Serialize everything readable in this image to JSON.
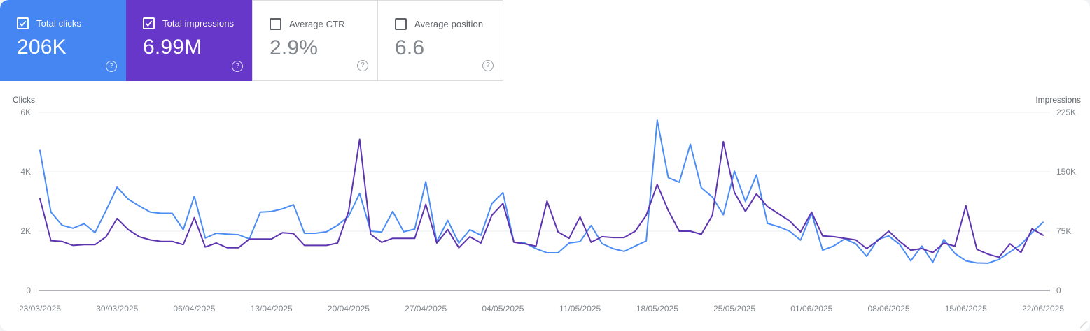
{
  "cards": [
    {
      "label": "Total clicks",
      "value": "206K",
      "checked": true,
      "bg": "#4686f2"
    },
    {
      "label": "Total impressions",
      "value": "6.99M",
      "checked": true,
      "bg": "#6637c9"
    },
    {
      "label": "Average CTR",
      "value": "2.9%",
      "checked": false,
      "bg": "#ffffff"
    },
    {
      "label": "Average position",
      "value": "6.6",
      "checked": false,
      "bg": "#ffffff"
    }
  ],
  "icons": {
    "help": "?"
  },
  "chart_data": {
    "type": "line",
    "x_labels": [
      "23/03/2025",
      "30/03/2025",
      "06/04/2025",
      "13/04/2025",
      "20/04/2025",
      "27/04/2025",
      "04/05/2025",
      "11/05/2025",
      "18/05/2025",
      "25/05/2025",
      "01/06/2025",
      "08/06/2025",
      "15/06/2025",
      "22/06/2025"
    ],
    "x_label_interval_days": 7,
    "left_axis": {
      "title": "Clicks",
      "ticks": [
        "0",
        "2K",
        "4K",
        "6K"
      ],
      "tick_values": [
        0,
        2000,
        4000,
        6000
      ],
      "max": 6000
    },
    "right_axis": {
      "title": "Impressions",
      "ticks": [
        "0",
        "75K",
        "150K",
        "225K"
      ],
      "tick_values": [
        0,
        75000,
        150000,
        225000
      ],
      "max": 225000
    },
    "grid": true,
    "legend_position": "none",
    "series": [
      {
        "name": "Total clicks",
        "axis": "left",
        "color": "#4c8df5",
        "values": [
          4720,
          2640,
          2200,
          2100,
          2250,
          1950,
          2700,
          3480,
          3080,
          2850,
          2640,
          2600,
          2600,
          2050,
          3180,
          1770,
          1930,
          1900,
          1880,
          1740,
          2640,
          2660,
          2750,
          2890,
          1930,
          1930,
          1980,
          2200,
          2500,
          3270,
          2000,
          1970,
          2660,
          1980,
          2070,
          3670,
          1650,
          2360,
          1600,
          2050,
          1860,
          2930,
          3300,
          1630,
          1600,
          1410,
          1270,
          1270,
          1600,
          1650,
          2190,
          1580,
          1410,
          1320,
          1500,
          1670,
          5740,
          3800,
          3650,
          4930,
          3460,
          3150,
          2550,
          4020,
          3000,
          3900,
          2260,
          2150,
          2000,
          1700,
          2600,
          1360,
          1500,
          1740,
          1580,
          1150,
          1720,
          1840,
          1550,
          1000,
          1500,
          950,
          1720,
          1250,
          1000,
          930,
          920,
          1050,
          1300,
          1550,
          1950,
          2300
        ]
      },
      {
        "name": "Total impressions",
        "axis": "right",
        "color": "#5e35b1",
        "values": [
          116000,
          63000,
          62000,
          57000,
          58000,
          58000,
          68000,
          91000,
          77000,
          68000,
          64000,
          62000,
          62000,
          58000,
          92000,
          55000,
          60000,
          54000,
          54000,
          65000,
          65000,
          65000,
          73000,
          72000,
          57000,
          57000,
          57000,
          60000,
          100000,
          191000,
          71000,
          61000,
          66000,
          66000,
          66000,
          109000,
          60000,
          77000,
          54000,
          68000,
          60000,
          95000,
          110000,
          61000,
          59000,
          56000,
          113000,
          74000,
          66000,
          93000,
          61000,
          68000,
          67000,
          67000,
          75000,
          95000,
          134000,
          101000,
          75000,
          75000,
          71000,
          95000,
          188000,
          124000,
          100000,
          122000,
          106000,
          97000,
          88000,
          74000,
          99000,
          69000,
          68000,
          66000,
          64000,
          53000,
          63000,
          75000,
          62000,
          51000,
          53000,
          48000,
          60000,
          56000,
          107000,
          52000,
          46000,
          42000,
          59000,
          48000,
          78000,
          70000
        ]
      }
    ]
  }
}
